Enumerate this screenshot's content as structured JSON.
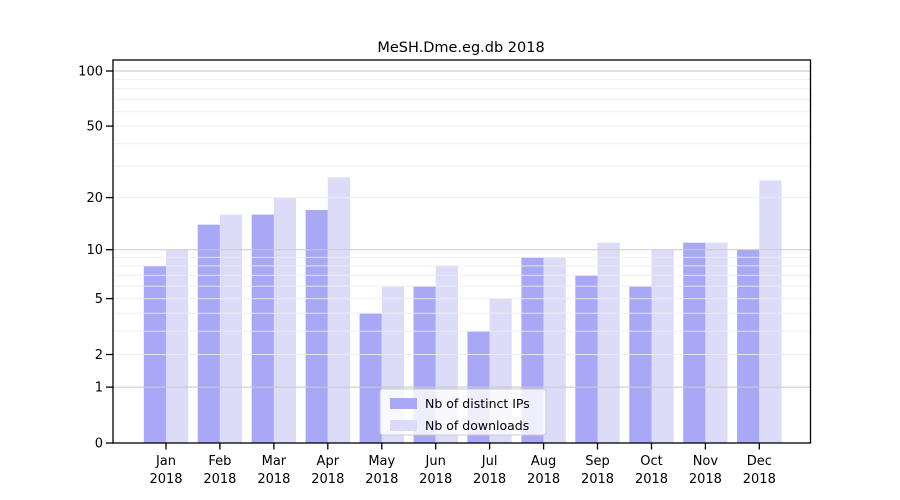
{
  "chart_data": {
    "type": "bar",
    "title": "MeSH.Dme.eg.db 2018",
    "categories": [
      "Jan",
      "Feb",
      "Mar",
      "Apr",
      "May",
      "Jun",
      "Jul",
      "Aug",
      "Sep",
      "Oct",
      "Nov",
      "Dec"
    ],
    "year_label": "2018",
    "series": [
      {
        "name": "Nb of distinct IPs",
        "color": "#a8a8f6",
        "values": [
          8,
          14,
          16,
          17,
          4,
          6,
          3,
          9,
          7,
          6,
          11,
          10
        ]
      },
      {
        "name": "Nb of downloads",
        "color": "#dcdcf9",
        "values": [
          10,
          16,
          20,
          26,
          6,
          8,
          5,
          9,
          11,
          10,
          11,
          25
        ]
      }
    ],
    "yscale": "log1p",
    "ylim": [
      0,
      100
    ],
    "yticks": [
      0,
      1,
      2,
      5,
      10,
      20,
      50,
      100
    ],
    "ytick_labels": [
      "0",
      "1",
      "2",
      "5",
      "10",
      "20",
      "50",
      "100"
    ],
    "minor_grid_values": [
      2,
      3,
      4,
      5,
      6,
      7,
      8,
      9,
      20,
      30,
      40,
      50,
      60,
      70,
      80,
      90
    ],
    "major_grid_values": [
      1,
      10,
      100
    ],
    "grid": "on",
    "legend_position": "inside-bottom-center",
    "colors": {
      "major_grid": "#c9c9c9",
      "minor_grid": "#ededed",
      "axis": "#000000",
      "legend_border": "#cccccc"
    }
  }
}
